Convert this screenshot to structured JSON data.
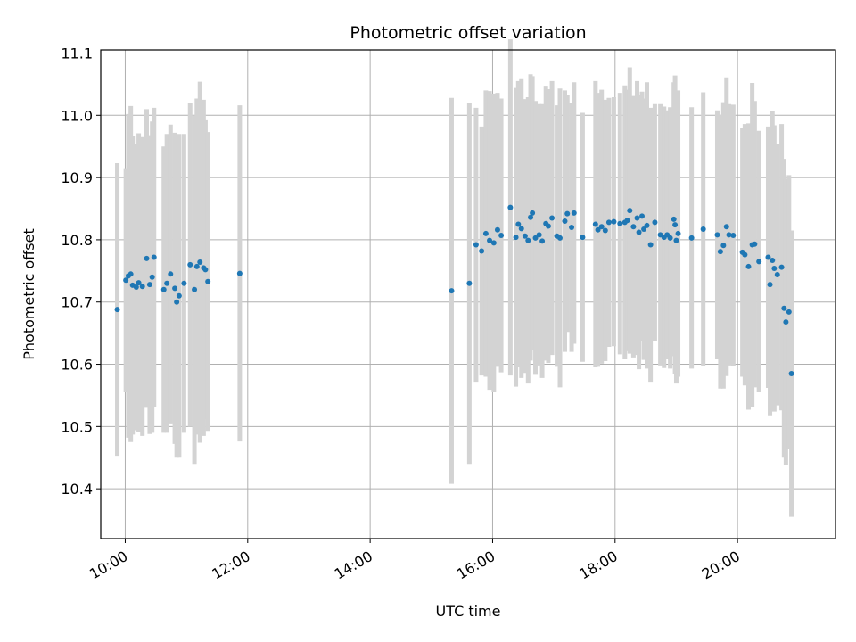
{
  "chart_data": {
    "type": "scatter",
    "title": "Photometric offset variation",
    "xlabel": "UTC time",
    "ylabel": "Photometric offset",
    "grid": true,
    "x_unit": "hours",
    "xlim": [
      9.6,
      21.6
    ],
    "ylim": [
      10.32,
      11.105
    ],
    "xticks": [
      10,
      12,
      14,
      16,
      18,
      20
    ],
    "xtick_labels": [
      "10:00",
      "12:00",
      "14:00",
      "16:00",
      "18:00",
      "20:00"
    ],
    "yticks": [
      10.4,
      10.5,
      10.6,
      10.7,
      10.8,
      10.9,
      11.0,
      11.1
    ],
    "ytick_labels": [
      "10.4",
      "10.5",
      "10.6",
      "10.7",
      "10.8",
      "10.9",
      "11.0",
      "11.1"
    ],
    "colors": {
      "points": "#1f77b4",
      "errorbars": "#d3d3d3",
      "grid": "#b0b0b0"
    },
    "series": [
      {
        "x": [
          9.87,
          10.01,
          10.05,
          10.09,
          10.12,
          10.18,
          10.22,
          10.28,
          10.35,
          10.4,
          10.44,
          10.47,
          10.63,
          10.68,
          10.74,
          10.81,
          10.84,
          10.88,
          10.96,
          11.06,
          11.13,
          11.17,
          11.22,
          11.28,
          11.31,
          11.35,
          11.87,
          15.33,
          15.62,
          15.73,
          15.82,
          15.89,
          15.95,
          16.02,
          16.08,
          16.14,
          16.29,
          16.38,
          16.42,
          16.47,
          16.53,
          16.58,
          16.62,
          16.65,
          16.7,
          16.76,
          16.81,
          16.87,
          16.91,
          16.97,
          17.05,
          17.1,
          17.18,
          17.22,
          17.29,
          17.33,
          17.47,
          17.68,
          17.72,
          17.78,
          17.84,
          17.9,
          17.98,
          18.08,
          18.16,
          18.2,
          18.24,
          18.3,
          18.36,
          18.39,
          18.44,
          18.47,
          18.52,
          18.58,
          18.65,
          18.74,
          18.8,
          18.85,
          18.9,
          18.96,
          18.98,
          19.0,
          19.03,
          19.25,
          19.44,
          19.67,
          19.72,
          19.77,
          19.82,
          19.86,
          19.93,
          20.08,
          20.12,
          20.18,
          20.24,
          20.28,
          20.35,
          20.5,
          20.53,
          20.57,
          20.6,
          20.65,
          20.72,
          20.76,
          20.79,
          20.84,
          20.88
        ],
        "y": [
          10.688,
          10.735,
          10.742,
          10.745,
          10.727,
          10.724,
          10.731,
          10.725,
          10.77,
          10.728,
          10.74,
          10.772,
          10.72,
          10.73,
          10.745,
          10.722,
          10.7,
          10.71,
          10.73,
          10.76,
          10.72,
          10.757,
          10.764,
          10.755,
          10.752,
          10.733,
          10.746,
          10.718,
          10.73,
          10.792,
          10.782,
          10.81,
          10.799,
          10.795,
          10.816,
          10.807,
          10.852,
          10.804,
          10.825,
          10.818,
          10.806,
          10.799,
          10.836,
          10.843,
          10.803,
          10.808,
          10.798,
          10.826,
          10.822,
          10.835,
          10.806,
          10.803,
          10.83,
          10.842,
          10.82,
          10.843,
          10.804,
          10.825,
          10.816,
          10.821,
          10.815,
          10.828,
          10.829,
          10.826,
          10.828,
          10.831,
          10.847,
          10.821,
          10.835,
          10.812,
          10.838,
          10.817,
          10.823,
          10.792,
          10.828,
          10.808,
          10.804,
          10.808,
          10.803,
          10.833,
          10.824,
          10.799,
          10.81,
          10.803,
          10.817,
          10.808,
          10.781,
          10.791,
          10.821,
          10.808,
          10.807,
          10.78,
          10.776,
          10.757,
          10.792,
          10.793,
          10.765,
          10.772,
          10.728,
          10.767,
          10.754,
          10.744,
          10.756,
          10.69,
          10.668,
          10.684,
          10.585
        ],
        "err": [
          0.235,
          0.18,
          0.26,
          0.27,
          0.24,
          0.23,
          0.24,
          0.24,
          0.24,
          0.24,
          0.25,
          0.24,
          0.23,
          0.24,
          0.24,
          0.25,
          0.25,
          0.26,
          0.24,
          0.26,
          0.28,
          0.27,
          0.29,
          0.27,
          0.24,
          0.24,
          0.27,
          0.31,
          0.29,
          0.22,
          0.2,
          0.23,
          0.24,
          0.24,
          0.22,
          0.22,
          0.27,
          0.24,
          0.23,
          0.24,
          0.22,
          0.23,
          0.23,
          0.22,
          0.22,
          0.21,
          0.22,
          0.22,
          0.22,
          0.22,
          0.21,
          0.24,
          0.21,
          0.19,
          0.2,
          0.21,
          0.2,
          0.23,
          0.22,
          0.22,
          0.21,
          0.2,
          0.2,
          0.21,
          0.22,
          0.21,
          0.23,
          0.21,
          0.22,
          0.22,
          0.2,
          0.21,
          0.23,
          0.22,
          0.19,
          0.21,
          0.21,
          0.2,
          0.21,
          0.22,
          0.24,
          0.23,
          0.23,
          0.21,
          0.22,
          0.2,
          0.22,
          0.23,
          0.24,
          0.21,
          0.21,
          0.2,
          0.21,
          0.23,
          0.26,
          0.23,
          0.21,
          0.21,
          0.21,
          0.24,
          0.23,
          0.21,
          0.23,
          0.24,
          0.23,
          0.22,
          0.23
        ]
      }
    ]
  }
}
